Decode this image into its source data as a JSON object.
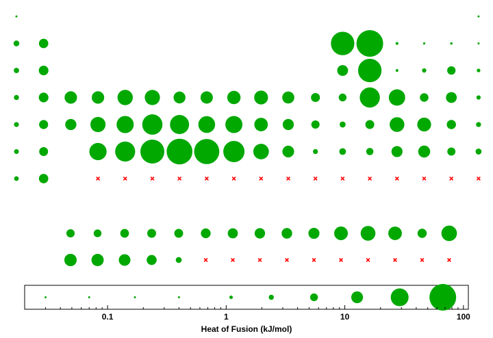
{
  "chart_data": {
    "type": "scatter",
    "description_units": "circle area encodes heat of fusion; x marks = no data",
    "xlabel": "Heat of Fusion (kJ/mol)",
    "legend_scale": {
      "type": "log",
      "xlim": [
        0.02,
        110
      ],
      "ticks": [
        {
          "value": 0.1,
          "label": "0.1"
        },
        {
          "value": 1,
          "label": "1"
        },
        {
          "value": 10,
          "label": "10"
        },
        {
          "value": 100,
          "label": "100"
        }
      ],
      "reference_values": [
        0.03,
        0.07,
        0.17,
        0.4,
        1.1,
        2.4,
        5.5,
        12.7,
        29,
        67
      ]
    },
    "main_grid": [
      [
        0.117,
        null,
        null,
        null,
        null,
        null,
        null,
        null,
        null,
        null,
        null,
        null,
        null,
        null,
        null,
        null,
        null,
        0.0138
      ],
      [
        3.0,
        7.95,
        null,
        null,
        null,
        null,
        null,
        null,
        null,
        null,
        null,
        null,
        50.2,
        117,
        0.72,
        0.444,
        0.51,
        0.335
      ],
      [
        2.6,
        8.48,
        null,
        null,
        null,
        null,
        null,
        null,
        null,
        null,
        null,
        null,
        10.7,
        50.2,
        0.66,
        1.72,
        6.4,
        1.18
      ],
      [
        2.33,
        8.54,
        14.1,
        14.15,
        21.5,
        21.0,
        12.9,
        13.8,
        16.2,
        17.5,
        13.26,
        7.32,
        5.59,
        36.94,
        24.44,
        6.69,
        10.57,
        1.64
      ],
      [
        2.19,
        7.43,
        11.4,
        21.0,
        26.8,
        37.48,
        33.29,
        25.7,
        26.59,
        16.74,
        11.28,
        6.21,
        3.28,
        7.173,
        19.79,
        17.49,
        7.76,
        2.27
      ],
      [
        2.09,
        7.12,
        null,
        27.2,
        36.57,
        52.31,
        60.43,
        57.85,
        41.12,
        22.17,
        12.55,
        2.29,
        4.14,
        4.77,
        11.106,
        13.0,
        6.0,
        3.247
      ],
      [
        2.0,
        8.0,
        null,
        null,
        null,
        null,
        null,
        null,
        null,
        null,
        null,
        null,
        null,
        null,
        null,
        null,
        null,
        null
      ]
    ],
    "lanthanides": [
      6.2,
      5.5,
      6.89,
      7.14,
      7.13,
      8.62,
      9.21,
      10.0,
      10.15,
      11.06,
      17.0,
      19.9,
      16.84,
      7.66,
      22.0
    ],
    "actinides": [
      14.0,
      13.7,
      12.34,
      9.14,
      3.2,
      null,
      null,
      null,
      null,
      null,
      null,
      null,
      null,
      null,
      null
    ],
    "colors": {
      "marker": "#00a800",
      "missing": "#ff0000",
      "frame": "#000000"
    }
  }
}
